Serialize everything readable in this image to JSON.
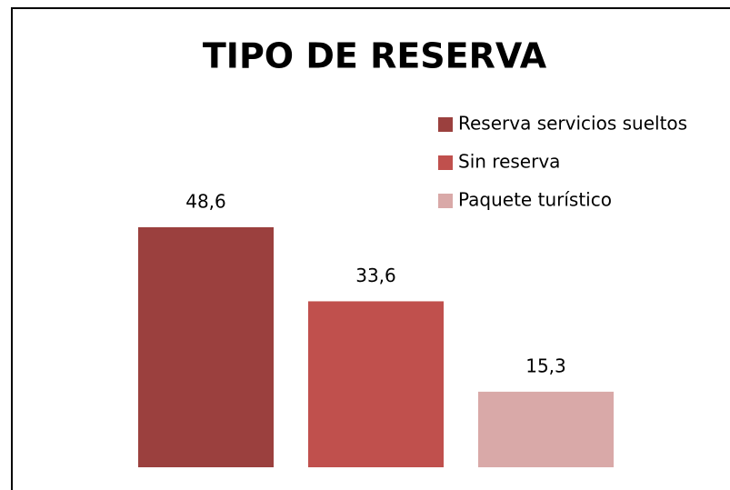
{
  "chart_data": {
    "type": "bar",
    "title": "TIPO DE RESERVA",
    "categories": [
      null
    ],
    "series": [
      {
        "name": "Reserva servicios sueltos",
        "color": "#9b403e",
        "values": [
          48.6
        ],
        "value_labels": [
          "48,6"
        ]
      },
      {
        "name": "Sin reserva",
        "color": "#c0504d",
        "values": [
          33.6
        ],
        "value_labels": [
          "33,6"
        ]
      },
      {
        "name": "Paquete turístico",
        "color": "#d9a9a8",
        "values": [
          15.3
        ],
        "value_labels": [
          "15,3"
        ]
      }
    ],
    "ylim": [
      0,
      60
    ],
    "legend": "top-right"
  }
}
